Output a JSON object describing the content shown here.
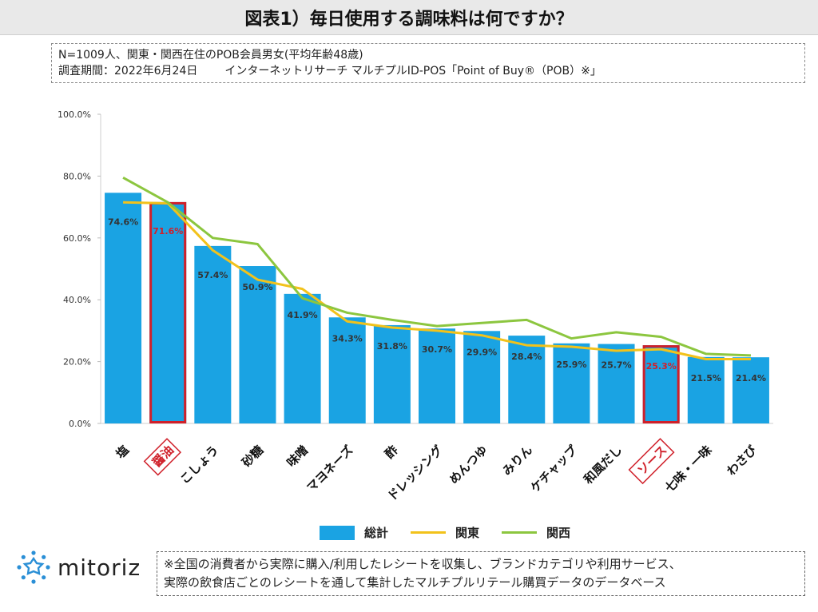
{
  "header": {
    "title": "図表1）毎日使用する調味料は何ですか？"
  },
  "info": {
    "line1": "N=1009人、関東・関西在住のPOB会員男女(平均年齢48歳)",
    "line2a": "調査期間：2022年6月24日",
    "line2b": "インターネットリサーチ マルチプルID-POS「Point of Buy®（POB）※」"
  },
  "chart_data": {
    "type": "bar",
    "categories": [
      "塩",
      "醤油",
      "こしょう",
      "砂糖",
      "味噌",
      "マヨネーズ",
      "酢",
      "ドレッシング",
      "めんつゆ",
      "みりん",
      "ケチャップ",
      "和風だし",
      "ソース",
      "七味・一味",
      "わさび"
    ],
    "highlighted": [
      "醤油",
      "ソース"
    ],
    "series": [
      {
        "name": "総計",
        "kind": "bar",
        "values": [
          74.6,
          71.6,
          57.4,
          50.9,
          41.9,
          34.3,
          31.8,
          30.7,
          29.9,
          28.4,
          25.9,
          25.7,
          25.3,
          21.5,
          21.4
        ],
        "labels": [
          "74.6%",
          "71.6%",
          "57.4%",
          "50.9%",
          "41.9%",
          "34.3%",
          "31.8%",
          "30.7%",
          "29.9%",
          "28.4%",
          "25.9%",
          "25.7%",
          "25.3%",
          "21.5%",
          "21.4%"
        ]
      },
      {
        "name": "関東",
        "kind": "line",
        "values": [
          71.5,
          71.2,
          56.0,
          46.5,
          43.5,
          33.0,
          31.0,
          30.0,
          28.5,
          25.3,
          24.8,
          23.5,
          24.0,
          20.8,
          20.8
        ]
      },
      {
        "name": "関西",
        "kind": "line",
        "values": [
          79.5,
          71.5,
          60.0,
          58.0,
          40.5,
          35.8,
          33.5,
          31.5,
          32.5,
          33.5,
          27.5,
          29.5,
          28.0,
          22.5,
          22.0
        ]
      }
    ],
    "yticks": [
      "0.0%",
      "20.0%",
      "40.0%",
      "60.0%",
      "80.0%",
      "100.0%"
    ],
    "ylim": [
      0,
      100
    ],
    "colors": {
      "bar": "#1aa3e3",
      "kanto": "#f2c21b",
      "kansai": "#8cc63f",
      "highlight": "#d0202a"
    },
    "legend_position": "bottom"
  },
  "footer": {
    "logo": "mitoriz",
    "note_line1": "※全国の消費者から実際に購入/利用したレシートを収集し、ブランドカテゴリや利用サービス、",
    "note_line2": "実際の飲食店ごとのレシートを通して集計したマルチプルリテール購買データのデータベース"
  }
}
